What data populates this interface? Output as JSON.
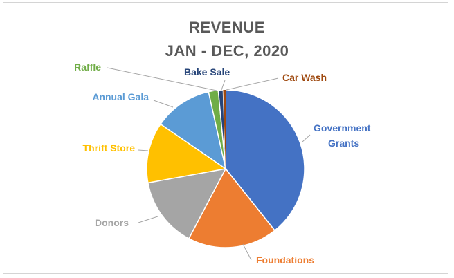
{
  "chart_data": {
    "type": "pie",
    "title_lines": [
      "REVENUE",
      "JAN - DEC, 2020"
    ],
    "start_angle_deg": 0,
    "direction": "clockwise",
    "slices": [
      {
        "label_lines": [
          "Government",
          "Grants"
        ],
        "value": 39.5,
        "color": "#4472c4"
      },
      {
        "label_lines": [
          "Foundations"
        ],
        "value": 18.5,
        "color": "#ed7d31"
      },
      {
        "label_lines": [
          "Donors"
        ],
        "value": 14.5,
        "color": "#a5a5a5"
      },
      {
        "label_lines": [
          "Thrift Store"
        ],
        "value": 12.5,
        "color": "#ffc000"
      },
      {
        "label_lines": [
          "Annual Gala"
        ],
        "value": 12.0,
        "color": "#5b9bd5"
      },
      {
        "label_lines": [
          "Raffle"
        ],
        "value": 2.0,
        "color": "#70ad47"
      },
      {
        "label_lines": [
          "Bake Sale"
        ],
        "value": 1.0,
        "color": "#264478"
      }
    ],
    "label_colors": {
      "Government Grants": "#4472c4",
      "Foundations": "#ed7d31",
      "Donors": "#a5a5a5",
      "Thrift Store": "#ffc000",
      "Annual Gala": "#5b9bd5",
      "Raffle": "#70ad47",
      "Bake Sale": "#264478",
      "Car Wash": "#9e480e"
    },
    "extra_labels": [
      {
        "label_lines": [
          "Car Wash"
        ],
        "color": "#9e480e"
      }
    ],
    "legend": "none"
  }
}
